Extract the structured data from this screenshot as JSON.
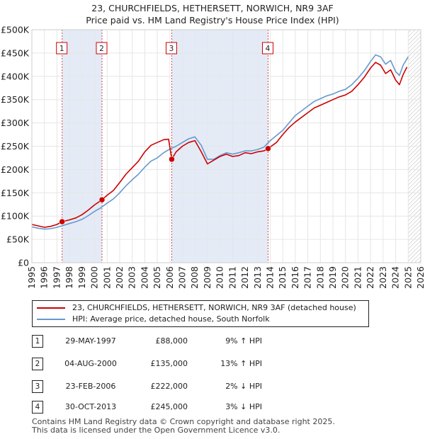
{
  "chart_data": {
    "type": "line",
    "title": "23, CHURCHFIELDS, HETHERSETT, NORWICH, NR9 3AF",
    "subtitle": "Price paid vs. HM Land Registry's House Price Index (HPI)",
    "xlabel": "",
    "ylabel": "",
    "xlim": [
      1995,
      2026
    ],
    "ylim": [
      0,
      500000
    ],
    "x_ticks": [
      1995,
      1996,
      1997,
      1998,
      1999,
      2000,
      2001,
      2002,
      2003,
      2004,
      2005,
      2006,
      2007,
      2008,
      2009,
      2010,
      2011,
      2012,
      2013,
      2014,
      2015,
      2016,
      2017,
      2018,
      2019,
      2020,
      2021,
      2022,
      2023,
      2024,
      2025,
      2026
    ],
    "y_ticks": [
      0,
      50000,
      100000,
      150000,
      200000,
      250000,
      300000,
      350000,
      400000,
      450000,
      500000
    ],
    "y_tick_labels": [
      "£0",
      "£50K",
      "£100K",
      "£150K",
      "£200K",
      "£250K",
      "£300K",
      "£350K",
      "£400K",
      "£450K",
      "£500K"
    ],
    "series": [
      {
        "name": "23, CHURCHFIELDS, HETHERSETT, NORWICH, NR9 3AF (detached house)",
        "color": "#cc0000",
        "x": [
          1995.0,
          1995.5,
          1996.0,
          1996.5,
          1997.0,
          1997.41,
          1998.0,
          1998.5,
          1999.0,
          1999.5,
          2000.0,
          2000.59,
          2001.0,
          2001.5,
          2002.0,
          2002.5,
          2003.0,
          2003.5,
          2004.0,
          2004.5,
          2005.0,
          2005.5,
          2005.9,
          2006.15,
          2006.5,
          2007.0,
          2007.5,
          2008.0,
          2008.5,
          2009.0,
          2009.5,
          2010.0,
          2010.5,
          2011.0,
          2011.5,
          2012.0,
          2012.5,
          2013.0,
          2013.5,
          2013.83,
          2014.5,
          2015.0,
          2015.5,
          2016.0,
          2016.5,
          2017.0,
          2017.5,
          2018.0,
          2018.5,
          2019.0,
          2019.5,
          2020.0,
          2020.5,
          2021.0,
          2021.5,
          2022.0,
          2022.4,
          2022.8,
          2023.2,
          2023.6,
          2024.0,
          2024.3,
          2024.6,
          2024.9
        ],
        "y": [
          82000,
          79000,
          76000,
          78000,
          82000,
          88000,
          92000,
          96000,
          103000,
          113000,
          124000,
          135000,
          145000,
          155000,
          172000,
          190000,
          204000,
          218000,
          238000,
          252000,
          258000,
          264000,
          265000,
          222000,
          238000,
          250000,
          258000,
          262000,
          238000,
          212000,
          220000,
          228000,
          233000,
          228000,
          230000,
          236000,
          234000,
          238000,
          240000,
          245000,
          258000,
          275000,
          290000,
          302000,
          312000,
          322000,
          332000,
          338000,
          344000,
          350000,
          356000,
          360000,
          368000,
          382000,
          398000,
          418000,
          430000,
          424000,
          406000,
          414000,
          392000,
          382000,
          404000,
          420000
        ]
      },
      {
        "name": "HPI: Average price, detached house, South Norfolk",
        "color": "#6699cc",
        "x": [
          1995.0,
          1995.5,
          1996.0,
          1996.5,
          1997.0,
          1997.5,
          1998.0,
          1998.5,
          1999.0,
          1999.5,
          2000.0,
          2000.5,
          2001.0,
          2001.5,
          2002.0,
          2002.5,
          2003.0,
          2003.5,
          2004.0,
          2004.5,
          2005.0,
          2005.5,
          2006.0,
          2006.5,
          2007.0,
          2007.5,
          2008.0,
          2008.5,
          2009.0,
          2009.5,
          2010.0,
          2010.5,
          2011.0,
          2011.5,
          2012.0,
          2012.5,
          2013.0,
          2013.5,
          2014.0,
          2014.5,
          2015.0,
          2015.5,
          2016.0,
          2016.5,
          2017.0,
          2017.5,
          2018.0,
          2018.5,
          2019.0,
          2019.5,
          2020.0,
          2020.5,
          2021.0,
          2021.5,
          2022.0,
          2022.4,
          2022.8,
          2023.2,
          2023.6,
          2024.0,
          2024.3,
          2024.6,
          2025.0
        ],
        "y": [
          77000,
          74000,
          72000,
          73000,
          76000,
          80000,
          84000,
          88000,
          93000,
          101000,
          110000,
          118000,
          128000,
          137000,
          150000,
          165000,
          178000,
          190000,
          205000,
          218000,
          225000,
          236000,
          244000,
          250000,
          258000,
          266000,
          270000,
          252000,
          222000,
          222000,
          230000,
          236000,
          233000,
          236000,
          240000,
          240000,
          243000,
          248000,
          262000,
          273000,
          284000,
          300000,
          316000,
          326000,
          336000,
          346000,
          352000,
          358000,
          362000,
          368000,
          372000,
          382000,
          396000,
          412000,
          432000,
          446000,
          442000,
          426000,
          434000,
          410000,
          402000,
          424000,
          442000
        ]
      }
    ],
    "sales": [
      {
        "num": "1",
        "x": 1997.41,
        "y": 88000
      },
      {
        "num": "2",
        "x": 2000.59,
        "y": 135000
      },
      {
        "num": "3",
        "x": 2006.15,
        "y": 222000
      },
      {
        "num": "4",
        "x": 2013.83,
        "y": 245000
      }
    ],
    "forecast_start": 2025.0
  },
  "legend": {
    "property_label": "23, CHURCHFIELDS, HETHERSETT, NORWICH, NR9 3AF (detached house)",
    "hpi_label": "HPI: Average price, detached house, South Norfolk"
  },
  "transactions": [
    {
      "num": "1",
      "date": "29-MAY-1997",
      "price": "£88,000",
      "hpi": "9% ↑ HPI"
    },
    {
      "num": "2",
      "date": "04-AUG-2000",
      "price": "£135,000",
      "hpi": "13% ↑ HPI"
    },
    {
      "num": "3",
      "date": "23-FEB-2006",
      "price": "£222,000",
      "hpi": "2% ↓ HPI"
    },
    {
      "num": "4",
      "date": "30-OCT-2013",
      "price": "£245,000",
      "hpi": "3% ↓ HPI"
    }
  ],
  "footer": {
    "line1": "Contains HM Land Registry data © Crown copyright and database right 2025.",
    "line2": "This data is licensed under the Open Government Licence v3.0."
  }
}
